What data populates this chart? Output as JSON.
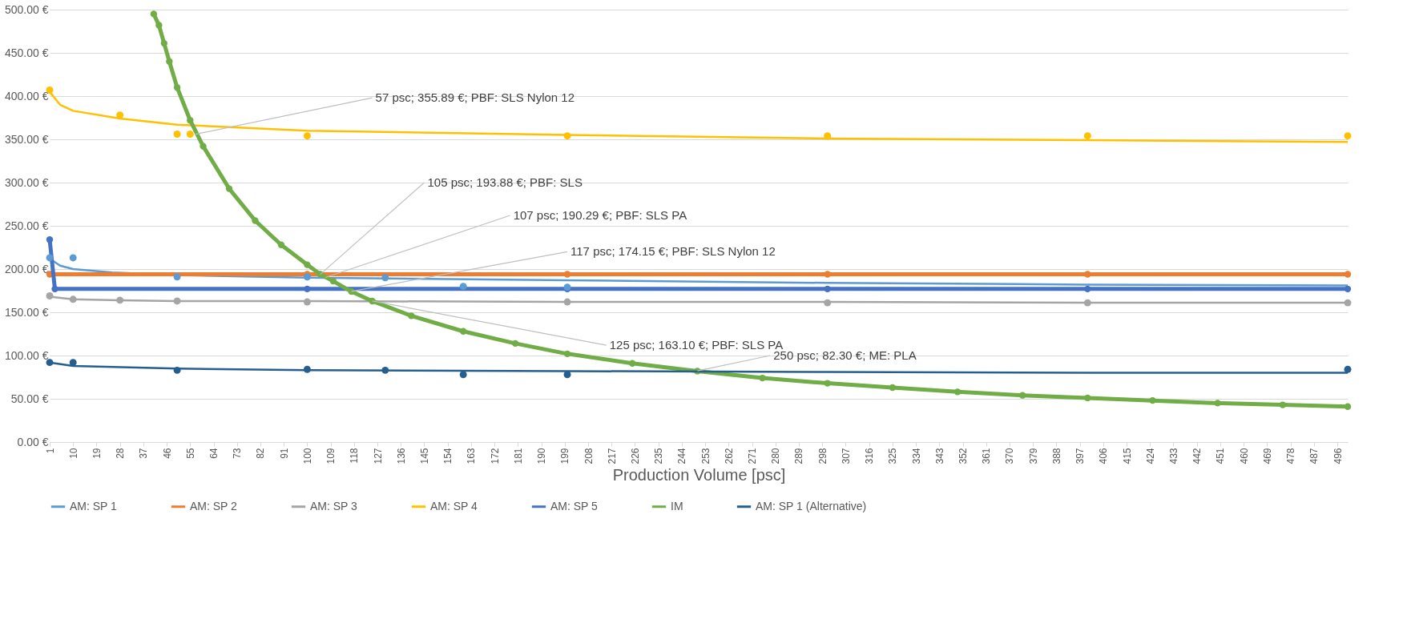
{
  "chart_data": {
    "type": "line",
    "xlabel": "Production Volume [psc]",
    "xlim": [
      1,
      500
    ],
    "xticks": [
      1,
      10,
      19,
      28,
      37,
      46,
      55,
      64,
      73,
      82,
      91,
      100,
      109,
      118,
      127,
      136,
      145,
      154,
      163,
      172,
      181,
      190,
      199,
      208,
      217,
      226,
      235,
      244,
      253,
      262,
      271,
      280,
      289,
      298,
      307,
      316,
      325,
      334,
      343,
      352,
      361,
      370,
      379,
      388,
      397,
      406,
      415,
      424,
      433,
      442,
      451,
      460,
      469,
      478,
      487,
      496
    ],
    "ylim": [
      0,
      500
    ],
    "yticks": [
      {
        "value": 0,
        "label": "0.00 €"
      },
      {
        "value": 50,
        "label": "50.00 €"
      },
      {
        "value": 100,
        "label": "100.00 €"
      },
      {
        "value": 150,
        "label": "150.00 €"
      },
      {
        "value": 200,
        "label": "200.00 €"
      },
      {
        "value": 250,
        "label": "250.00 €"
      },
      {
        "value": 300,
        "label": "300.00 €"
      },
      {
        "value": 350,
        "label": "350.00 €"
      },
      {
        "value": 400,
        "label": "400.00 €"
      },
      {
        "value": 450,
        "label": "450.00 €"
      },
      {
        "value": 500,
        "label": "500.00 €"
      }
    ],
    "grid": "y",
    "legend": "bottom",
    "series": [
      {
        "name": "AM: SP 1",
        "color": "#5b9bd5",
        "type": "scatter",
        "x": [
          1,
          10,
          50,
          100,
          130,
          160,
          200
        ],
        "values": [
          213,
          213,
          191,
          191,
          190,
          180,
          179
        ]
      },
      {
        "color": "#5b9bd5",
        "type": "line",
        "x": [
          1,
          5,
          10,
          25,
          50,
          100,
          200,
          300,
          400,
          500
        ],
        "values": [
          212,
          204,
          200,
          196,
          193,
          190,
          187,
          184,
          182,
          181
        ]
      },
      {
        "name": "AM: SP 2",
        "color": "#ed7d31",
        "type": "line",
        "marker": "circle",
        "x": [
          1,
          100,
          200,
          300,
          400,
          500
        ],
        "values": [
          194,
          194,
          194,
          194,
          194,
          194
        ]
      },
      {
        "name": "AM: SP 3",
        "color": "#a5a5a5",
        "type": "scatter",
        "x": [
          1,
          10,
          28,
          50,
          100,
          200,
          300,
          400,
          500
        ],
        "values": [
          169,
          165,
          164,
          163,
          162,
          162,
          161,
          161,
          161
        ]
      },
      {
        "color": "#a5a5a5",
        "type": "line",
        "x": [
          1,
          10,
          28,
          50,
          100,
          200,
          300,
          400,
          500
        ],
        "values": [
          168,
          165,
          164,
          163,
          163,
          162,
          162,
          161,
          161
        ]
      },
      {
        "name": "AM: SP 4",
        "color": "#ffc000",
        "type": "scatter",
        "x": [
          1,
          28,
          50,
          55,
          100,
          200,
          300,
          400,
          500
        ],
        "values": [
          407,
          378,
          356,
          356,
          354,
          354,
          354,
          354,
          354
        ]
      },
      {
        "color": "#ffc000",
        "type": "line",
        "x": [
          1,
          5,
          10,
          28,
          50,
          100,
          200,
          300,
          400,
          500
        ],
        "values": [
          405,
          390,
          383,
          374,
          367,
          360,
          355,
          351,
          349,
          347
        ]
      },
      {
        "name": "AM: SP 5",
        "color": "#4472c4",
        "type": "line",
        "marker": "circle",
        "x": [
          1,
          3,
          100,
          200,
          300,
          400,
          500
        ],
        "values": [
          234,
          177,
          177,
          177,
          177,
          177,
          177
        ]
      },
      {
        "name": "IM",
        "color": "#70ad47",
        "type": "line",
        "marker": "circle",
        "x": [
          41,
          43,
          45,
          47,
          50,
          55,
          60,
          70,
          80,
          90,
          100,
          105,
          110,
          117,
          125,
          140,
          160,
          180,
          200,
          225,
          250,
          275,
          300,
          325,
          350,
          375,
          400,
          425,
          450,
          475,
          500
        ],
        "values": [
          495,
          482,
          461,
          440,
          410,
          372,
          342,
          293,
          256,
          228,
          205,
          194,
          186,
          174,
          163,
          146,
          128,
          114,
          102,
          91,
          82,
          74,
          68,
          63,
          58,
          54,
          51,
          48,
          45,
          43,
          41
        ]
      },
      {
        "name": "AM: SP 1 (Alternative)",
        "color": "#255e91",
        "type": "scatter",
        "x": [
          1,
          10,
          50,
          100,
          130,
          160,
          200,
          500
        ],
        "values": [
          92,
          92,
          83,
          84,
          83,
          78,
          78,
          84
        ]
      },
      {
        "color": "#255e91",
        "type": "line",
        "x": [
          1,
          10,
          50,
          100,
          200,
          300,
          400,
          500
        ],
        "values": [
          92,
          88,
          85,
          83,
          82,
          81,
          80,
          80
        ]
      }
    ],
    "annotations": [
      {
        "text": "57 psc; 355.89 €; PBF: SLS Nylon 12",
        "x": 57,
        "y": 355.89
      },
      {
        "text": "105 psc; 193.88 €; PBF: SLS",
        "x": 105,
        "y": 193.88
      },
      {
        "text": "107 psc; 190.29 €; PBF: SLS PA",
        "x": 107,
        "y": 190.29
      },
      {
        "text": "117 psc; 174.15 €; PBF: SLS Nylon 12",
        "x": 117,
        "y": 174.15
      },
      {
        "text": "125 psc; 163.10 €; PBF: SLS PA",
        "x": 125,
        "y": 163.1
      },
      {
        "text": "250 psc; 82.30 €; ME: PLA",
        "x": 250,
        "y": 82.3
      }
    ]
  }
}
